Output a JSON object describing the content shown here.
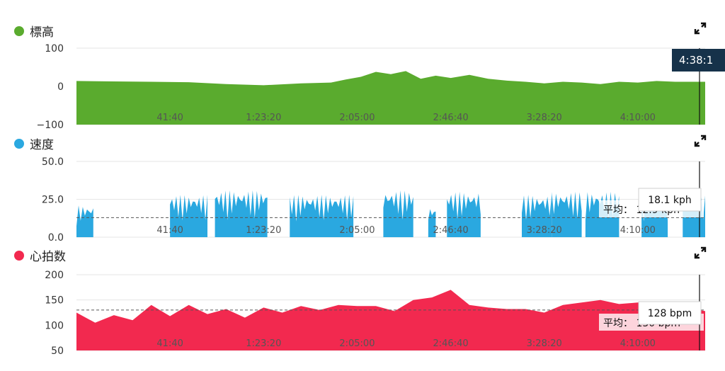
{
  "panels": [
    {
      "key": "elev",
      "title": "標高",
      "color": "#5aab2e",
      "icon": "expand-icon"
    },
    {
      "key": "speed",
      "title": "速度",
      "color": "#2aa8e0",
      "icon": "expand-icon"
    },
    {
      "key": "hr",
      "title": "心拍数",
      "color": "#f2294f",
      "icon": "expand-icon"
    }
  ],
  "cursor_time": "4:38:1",
  "chart_data": [
    {
      "type": "area",
      "title": "標高",
      "yticks": [
        "100",
        "0",
        "−100"
      ],
      "ylim": [
        -100,
        100
      ],
      "xticks": [
        "41:40",
        "1:23:20",
        "2:05:00",
        "2:46:40",
        "3:28:20",
        "4:10:00"
      ],
      "xtick_values": [
        2500,
        5000,
        7500,
        10000,
        12500,
        15000
      ],
      "xlim": [
        0,
        16800
      ],
      "x": [
        0,
        1000,
        2000,
        3000,
        4000,
        5000,
        6000,
        6800,
        7200,
        7600,
        8000,
        8400,
        8800,
        9200,
        9600,
        10000,
        10500,
        11000,
        11500,
        12000,
        12500,
        13000,
        13500,
        14000,
        14500,
        15000,
        15500,
        16000,
        16800
      ],
      "values": [
        14,
        13,
        12,
        11,
        6,
        3,
        8,
        10,
        18,
        25,
        38,
        32,
        40,
        20,
        28,
        22,
        30,
        20,
        15,
        12,
        8,
        12,
        10,
        6,
        12,
        10,
        14,
        12,
        12
      ]
    },
    {
      "type": "area",
      "title": "速度",
      "yticks": [
        "50.0",
        "25.0",
        "0.0"
      ],
      "ylim": [
        0,
        50
      ],
      "xticks": [
        "41:40",
        "1:23:20",
        "2:05:00",
        "2:46:40",
        "3:28:20",
        "4:10:00"
      ],
      "xtick_values": [
        2500,
        5000,
        7500,
        10000,
        12500,
        15000
      ],
      "xlim": [
        0,
        16800
      ],
      "segments": [
        [
          0,
          450,
          21
        ],
        [
          2500,
          3500,
          28
        ],
        [
          3700,
          5100,
          31
        ],
        [
          5700,
          7400,
          28
        ],
        [
          8200,
          9000,
          31
        ],
        [
          9400,
          9600,
          20
        ],
        [
          9900,
          10800,
          30
        ],
        [
          11900,
          12700,
          28
        ],
        [
          12700,
          13500,
          30
        ],
        [
          13600,
          14500,
          30
        ],
        [
          15100,
          15800,
          27
        ],
        [
          16200,
          16800,
          28
        ]
      ],
      "average": {
        "label": "平均：",
        "value": "12.9 kph",
        "y": 12.9
      },
      "tooltip": "18.1 kph"
    },
    {
      "type": "area",
      "title": "心拍数",
      "yticks": [
        "200",
        "150",
        "100",
        "50"
      ],
      "ylim": [
        50,
        200
      ],
      "xticks": [
        "41:40",
        "1:23:20",
        "2:05:00",
        "2:46:40",
        "3:28:20",
        "4:10:00"
      ],
      "xtick_values": [
        2500,
        5000,
        7500,
        10000,
        12500,
        15000
      ],
      "xlim": [
        0,
        16800
      ],
      "x": [
        0,
        500,
        1000,
        1500,
        2000,
        2500,
        3000,
        3500,
        4000,
        4500,
        5000,
        5500,
        6000,
        6500,
        7000,
        7500,
        8000,
        8500,
        9000,
        9500,
        10000,
        10500,
        11000,
        11500,
        12000,
        12500,
        13000,
        13500,
        14000,
        14500,
        15000,
        15500,
        16000,
        16800
      ],
      "values": [
        125,
        105,
        120,
        110,
        140,
        118,
        140,
        122,
        132,
        115,
        135,
        125,
        138,
        130,
        140,
        138,
        138,
        128,
        150,
        155,
        170,
        140,
        135,
        132,
        132,
        125,
        140,
        145,
        150,
        142,
        145,
        140,
        138,
        128
      ],
      "average": {
        "label": "平均：",
        "value": "130 bpm",
        "y": 130
      },
      "tooltip": "128 bpm"
    }
  ]
}
